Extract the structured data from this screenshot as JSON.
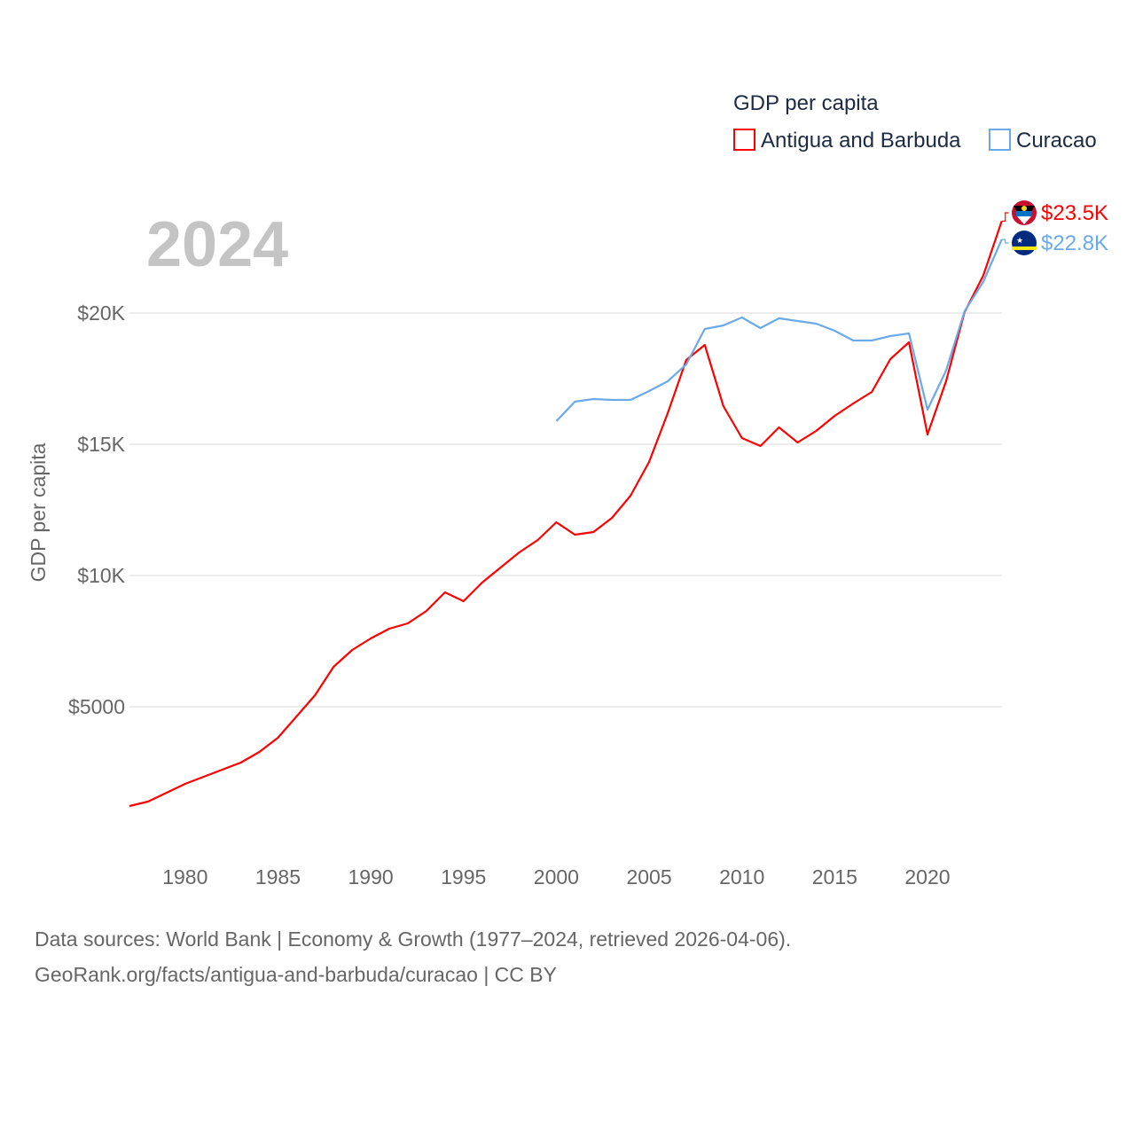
{
  "chart_data": {
    "type": "line",
    "title": "GDP per capita",
    "year_label": "2024",
    "ylabel": "GDP per capita",
    "xlabel": "",
    "xlim": [
      1977,
      2024
    ],
    "ylim": [
      0,
      23716
    ],
    "x_ticks": [
      1980,
      1985,
      1990,
      1995,
      2000,
      2005,
      2010,
      2015,
      2020
    ],
    "x_tick_labels": [
      "1980",
      "1985",
      "1990",
      "1995",
      "2000",
      "2005",
      "2010",
      "2015",
      "2020"
    ],
    "y_ticks": [
      5000,
      10000,
      15000,
      20000
    ],
    "y_tick_labels": [
      "$5000",
      "$10K",
      "$15K",
      "$20K"
    ],
    "grid": true,
    "legend_placement": "top-right",
    "series": [
      {
        "name": "Antigua and Barbuda",
        "color": "#ff0000",
        "end_label": "$23.5K",
        "flag": "antigua-flag-icon",
        "x": [
          1977,
          1978,
          1979,
          1980,
          1981,
          1982,
          1983,
          1984,
          1985,
          1986,
          1987,
          1988,
          1989,
          1990,
          1991,
          1992,
          1993,
          1994,
          1995,
          1996,
          1997,
          1998,
          1999,
          2000,
          2001,
          2002,
          2003,
          2004,
          2005,
          2006,
          2007,
          2008,
          2009,
          2010,
          2011,
          2012,
          2013,
          2014,
          2015,
          2016,
          2017,
          2018,
          2019,
          2020,
          2021,
          2022,
          2023,
          2024
        ],
        "values": [
          1216,
          1385,
          1723,
          2061,
          2331,
          2601,
          2872,
          3277,
          3818,
          4628,
          5439,
          6520,
          7162,
          7601,
          7973,
          8176,
          8649,
          9358,
          9020,
          9730,
          10304,
          10878,
          11351,
          12027,
          11554,
          11655,
          12196,
          13041,
          14324,
          16182,
          18209,
          18784,
          16453,
          15236,
          14932,
          15642,
          15068,
          15507,
          16081,
          16554,
          16993,
          18243,
          18885,
          15372,
          17399,
          20034,
          21419,
          23500
        ]
      },
      {
        "name": "Curacao",
        "color": "#6aaae8",
        "end_label": "$22.8K",
        "flag": "curacao-flag-icon",
        "x": [
          2000,
          2001,
          2002,
          2003,
          2004,
          2005,
          2006,
          2007,
          2008,
          2009,
          2010,
          2011,
          2012,
          2013,
          2014,
          2015,
          2016,
          2017,
          2018,
          2019,
          2020,
          2021,
          2022,
          2023,
          2024
        ],
        "values": [
          15878,
          16622,
          16723,
          16689,
          16689,
          17027,
          17399,
          18041,
          19392,
          19527,
          19831,
          19426,
          19797,
          19696,
          19595,
          19324,
          18953,
          18953,
          19122,
          19223,
          16318,
          17804,
          20068,
          21182,
          22800
        ]
      }
    ]
  },
  "footer": {
    "line1": "Data sources: World Bank | Economy & Growth (1977–2024, retrieved 2026-04-06).",
    "line2": "GeoRank.org/facts/antigua-and-barbuda/curacao | CC BY"
  }
}
